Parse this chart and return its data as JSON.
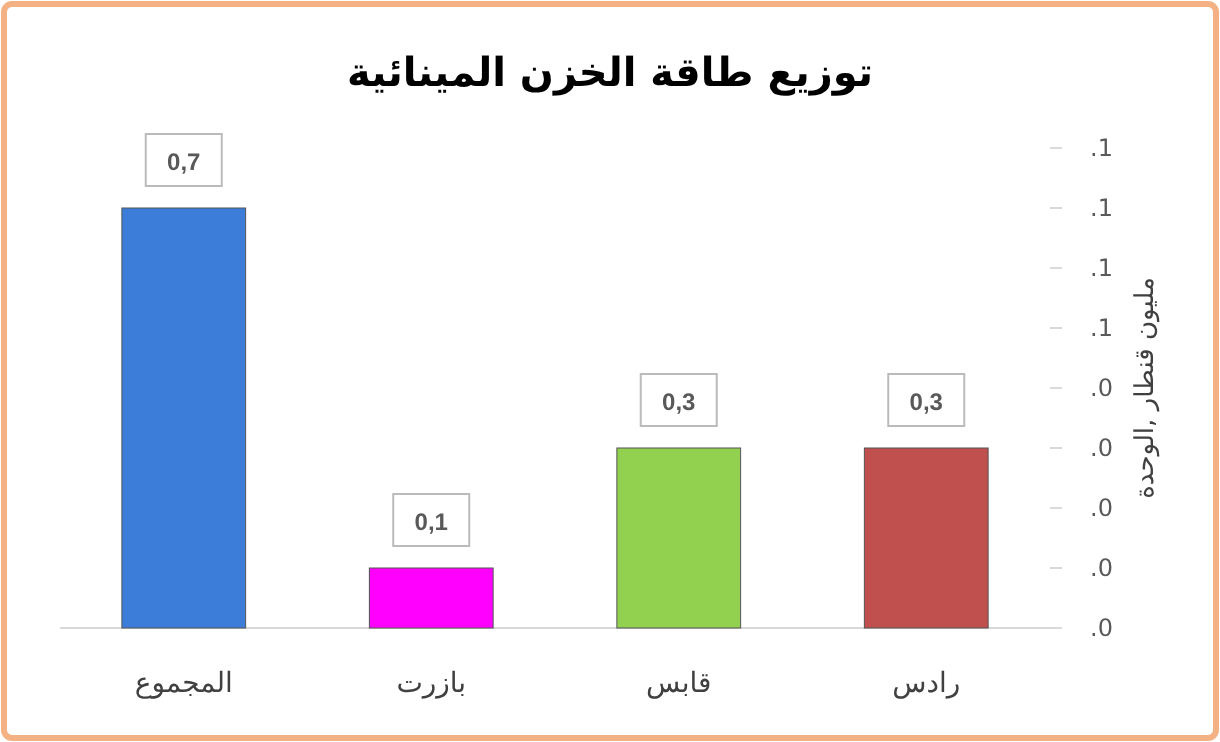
{
  "chart_data": {
    "type": "bar",
    "title": "توزيع طاقة الخزن المينائية",
    "ylabel": "مليون قنطار ,الوحدة",
    "categories": [
      "المجموع",
      "بازرت",
      "قابس",
      "رادس"
    ],
    "values": [
      0.7,
      0.1,
      0.3,
      0.3
    ],
    "colors": [
      "#3b7dd8",
      "#ff00ff",
      "#92d050",
      "#c0504d"
    ],
    "value_labels": [
      "0,7",
      "0,1",
      "0,3",
      "0,3"
    ],
    "yticks": [
      {
        "value": 0,
        "label": null
      },
      {
        "value": 0.1,
        "label": null
      },
      {
        "value": 0.2,
        "label": null
      },
      {
        "value": 0.3,
        "label": null
      },
      {
        "value": 0.4,
        "label": null
      },
      {
        "value": 0.5,
        "label": null
      },
      {
        "value": 0.6,
        "label": null
      },
      {
        "value": 0.7,
        "label": null
      },
      {
        "value": 0.8,
        "label": null
      }
    ],
    "annotations": [
      ".0",
      ".0",
      ".0",
      ".0",
      ".0",
      ".1",
      ".1",
      ".1",
      ".1"
    ],
    "grid": false
  }
}
